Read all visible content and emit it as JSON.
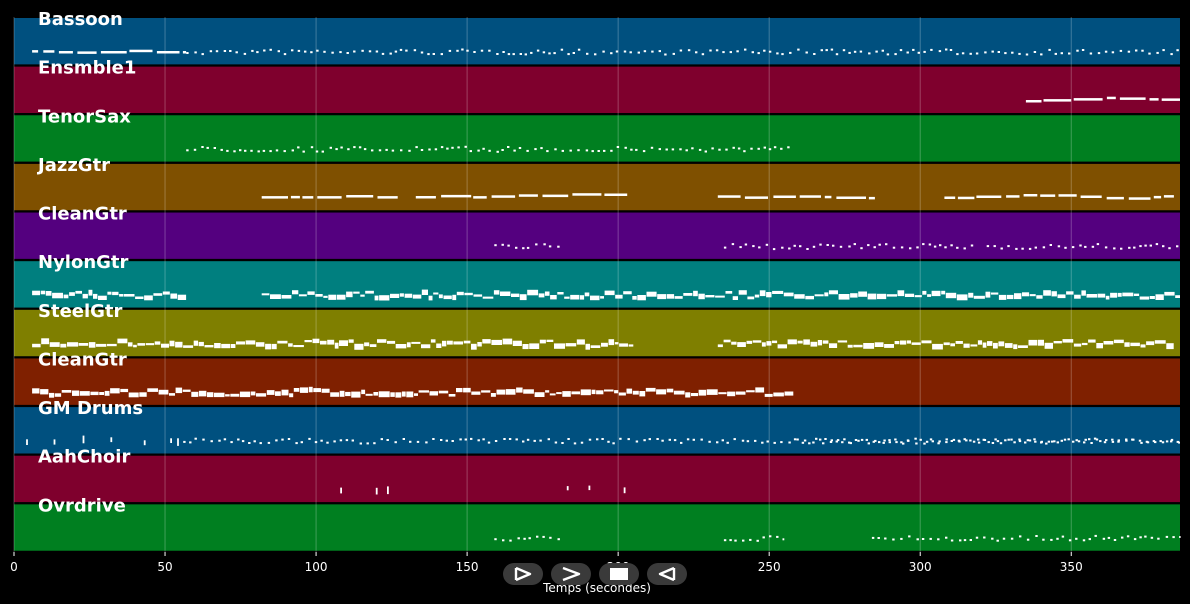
{
  "chart_data": {
    "type": "piano-roll",
    "xlabel": "Temps (secondes)",
    "xlim": [
      0,
      386
    ],
    "xticks": [
      0,
      50,
      100,
      150,
      200,
      250,
      300,
      350
    ],
    "grid": true,
    "tracks": [
      {
        "name": "Bassoon",
        "color": "#00507f",
        "segments": [
          {
            "start": 6,
            "end": 57,
            "style": "sparse"
          },
          {
            "start": 57,
            "end": 386,
            "style": "dotted"
          }
        ]
      },
      {
        "name": "Ensmble1",
        "color": "#7f002d",
        "segments": [
          {
            "start": 335,
            "end": 386,
            "style": "sparse"
          }
        ]
      },
      {
        "name": "TenorSax",
        "color": "#007f20",
        "segments": [
          {
            "start": 57,
            "end": 258,
            "style": "dotted"
          }
        ]
      },
      {
        "name": "JazzGtr",
        "color": "#7f5000",
        "segments": [
          {
            "start": 82,
            "end": 127,
            "style": "sparse"
          },
          {
            "start": 133,
            "end": 203,
            "style": "sparse"
          },
          {
            "start": 233,
            "end": 285,
            "style": "sparse"
          },
          {
            "start": 308,
            "end": 384,
            "style": "sparse"
          }
        ]
      },
      {
        "name": "CleanGtr",
        "color": "#54007f",
        "segments": [
          {
            "start": 159,
            "end": 181,
            "style": "dotted"
          },
          {
            "start": 235,
            "end": 318,
            "style": "dotted"
          },
          {
            "start": 322,
            "end": 386,
            "style": "dotted"
          }
        ]
      },
      {
        "name": "NylonGtr",
        "color": "#007f7f",
        "segments": [
          {
            "start": 6,
            "end": 57,
            "style": "dense"
          },
          {
            "start": 82,
            "end": 386,
            "style": "dense"
          }
        ]
      },
      {
        "name": "SteelGtr",
        "color": "#7f7f00",
        "segments": [
          {
            "start": 6,
            "end": 205,
            "style": "dense"
          },
          {
            "start": 233,
            "end": 384,
            "style": "dense"
          }
        ]
      },
      {
        "name": "CleanGtr",
        "color": "#7f2000",
        "segments": [
          {
            "start": 6,
            "end": 258,
            "style": "dense"
          }
        ]
      },
      {
        "name": "GM Drums",
        "color": "#00507f",
        "segments": [
          {
            "start": 4,
            "end": 55,
            "style": "hits"
          },
          {
            "start": 56,
            "end": 386,
            "style": "dotted"
          },
          {
            "start": 259,
            "end": 386,
            "style": "dotted"
          }
        ]
      },
      {
        "name": "AahChoir",
        "color": "#7f002d",
        "segments": [
          {
            "start": 108,
            "end": 133,
            "style": "hits"
          },
          {
            "start": 183,
            "end": 205,
            "style": "hits"
          }
        ]
      },
      {
        "name": "Ovrdrive",
        "color": "#007f20",
        "segments": [
          {
            "start": 159,
            "end": 181,
            "style": "dotted"
          },
          {
            "start": 235,
            "end": 255,
            "style": "dotted"
          },
          {
            "start": 284,
            "end": 386,
            "style": "dotted"
          }
        ]
      }
    ]
  },
  "controls": {
    "play_icon": "play-outline-icon",
    "forward_icon": "chevron-right-icon",
    "stop_icon": "stop-icon",
    "back_icon": "back-outline-icon"
  }
}
